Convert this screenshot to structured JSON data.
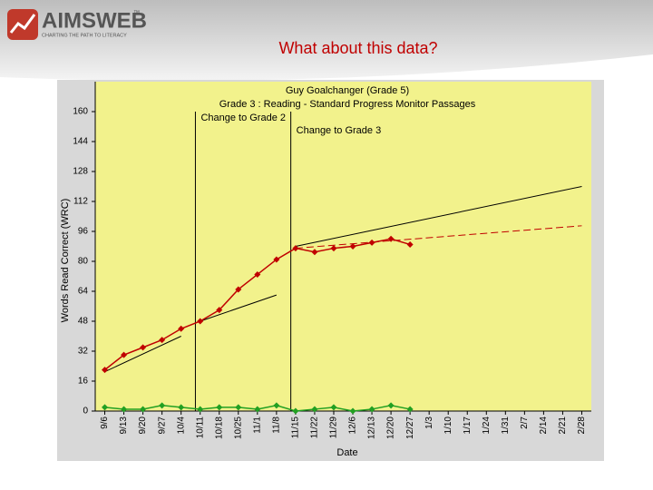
{
  "header": {
    "logo": "AIMSWEB",
    "trademark": "™",
    "tagline": "CHARTING THE PATH TO LITERACY",
    "slide_title": "What about this data?"
  },
  "chart_data": {
    "type": "line",
    "title": "Guy Goalchanger (Grade 5)",
    "subtitle": "Grade 3 : Reading - Standard Progress Monitor Passages",
    "y_label": "Words Read Correct (WRC)",
    "x_label": "Date",
    "categories": [
      "9/6",
      "9/13",
      "9/20",
      "9/27",
      "10/4",
      "10/11",
      "10/18",
      "10/25",
      "11/1",
      "11/8",
      "11/15",
      "11/22",
      "11/29",
      "12/6",
      "12/13",
      "12/20",
      "12/27",
      "1/3",
      "1/10",
      "1/17",
      "1/24",
      "1/31",
      "2/7",
      "2/14",
      "2/21",
      "2/28"
    ],
    "series": [
      {
        "color": "#c00000",
        "values": [
          22,
          30,
          34,
          38,
          44,
          48,
          54,
          65,
          73,
          81,
          87,
          85,
          87,
          88,
          90,
          92,
          89,
          null,
          null,
          null,
          null,
          null,
          null,
          null,
          null,
          null
        ]
      },
      {
        "color": "#22a022",
        "values": [
          2,
          1,
          1,
          3,
          2,
          1,
          2,
          2,
          1,
          3,
          0,
          1,
          2,
          0,
          1,
          3,
          1,
          null,
          null,
          null,
          null,
          null,
          null,
          null,
          null,
          null
        ]
      }
    ],
    "trend_lines": [
      {
        "start": "9/6",
        "end": "10/4",
        "values": [
          21,
          40
        ],
        "color": "#000000",
        "dashed": false
      },
      {
        "start": "10/11",
        "end": "11/8",
        "values": [
          48,
          62
        ],
        "color": "#000000",
        "dashed": false
      },
      {
        "start": "11/15",
        "end": "2/28",
        "values": [
          88,
          120
        ],
        "color": "#000000",
        "dashed": false
      },
      {
        "start": "11/15",
        "end": "2/28",
        "values": [
          87,
          99
        ],
        "color": "#c00000",
        "dashed": true
      }
    ],
    "annotations": [
      {
        "at": "10/11",
        "text": "Change to Grade 2"
      },
      {
        "at": "11/15",
        "text": "Change to Grade 3"
      }
    ],
    "ylim": [
      0,
      176
    ],
    "yticks": [
      0,
      16,
      32,
      48,
      64,
      80,
      96,
      112,
      128,
      144,
      160
    ],
    "grid": false,
    "plot_color": "#f2f28c"
  }
}
